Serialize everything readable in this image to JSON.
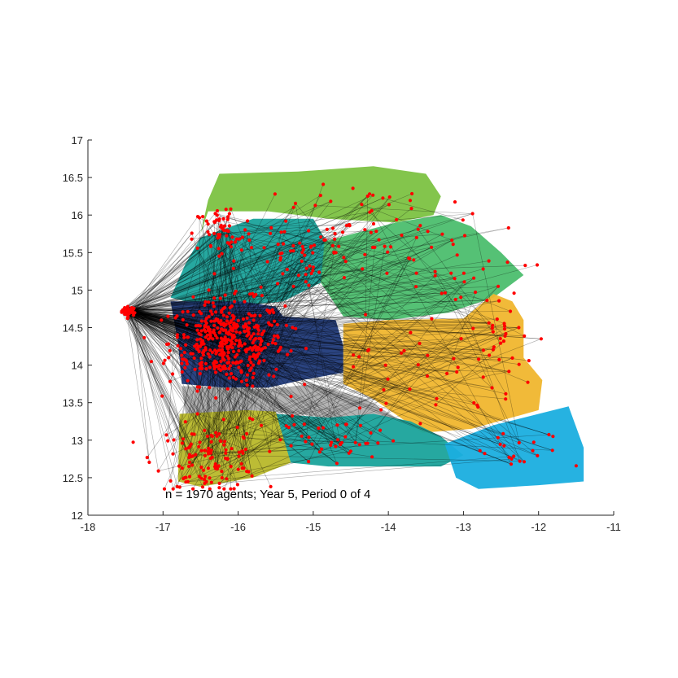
{
  "chart_data": {
    "type": "scatter",
    "title": "",
    "xlabel": "",
    "ylabel": "",
    "xlim": [
      -18,
      -11
    ],
    "ylim": [
      12,
      17
    ],
    "xticks": [
      -18,
      -17,
      -16,
      -15,
      -14,
      -13,
      -12,
      -11
    ],
    "yticks": [
      12,
      12.5,
      13,
      13.5,
      14,
      14.5,
      15,
      15.5,
      16,
      16.5,
      17
    ],
    "xtick_labels": [
      "-18",
      "-17",
      "-16",
      "-15",
      "-14",
      "-13",
      "-12",
      "-11"
    ],
    "ytick_labels": [
      "12",
      "12.5",
      "13",
      "13.5",
      "14",
      "14.5",
      "15",
      "15.5",
      "16",
      "16.5",
      "17"
    ],
    "grid": false,
    "legend": "none",
    "annotation": "n = 1970 agents; Year 5, Period 0 of 4",
    "agent_count": 1970,
    "colors": {
      "agent_marker": "#ff0000",
      "network_edge": "#000000",
      "region_north": "#7cc242",
      "region_teal": "#1aa39b",
      "region_green_east": "#4cbe6e",
      "region_navy": "#203a7a",
      "region_yellow": "#f0b62e",
      "region_gray": "#b0b0b0",
      "region_olive": "#b8b82a",
      "region_cyan": "#1aaedf"
    },
    "regions": [
      {
        "name": "north",
        "color": "#7cc242",
        "polygon": [
          [
            -16.25,
            16.55
          ],
          [
            -15.2,
            16.58
          ],
          [
            -14.2,
            16.65
          ],
          [
            -13.5,
            16.55
          ],
          [
            -13.3,
            16.25
          ],
          [
            -13.4,
            16.0
          ],
          [
            -13.9,
            15.9
          ],
          [
            -14.8,
            15.95
          ],
          [
            -15.6,
            16.05
          ],
          [
            -16.4,
            16.05
          ],
          [
            -16.5,
            15.75
          ],
          [
            -16.4,
            16.2
          ]
        ]
      },
      {
        "name": "teal-north",
        "color": "#1aa39b",
        "polygon": [
          [
            -16.5,
            15.7
          ],
          [
            -15.8,
            15.95
          ],
          [
            -15.0,
            15.95
          ],
          [
            -14.8,
            15.6
          ],
          [
            -14.9,
            15.1
          ],
          [
            -15.4,
            14.85
          ],
          [
            -16.3,
            14.75
          ],
          [
            -16.9,
            14.9
          ],
          [
            -16.7,
            15.35
          ]
        ]
      },
      {
        "name": "green-east",
        "color": "#4cbe6e",
        "polygon": [
          [
            -14.85,
            15.65
          ],
          [
            -13.9,
            15.9
          ],
          [
            -13.3,
            16.0
          ],
          [
            -12.9,
            15.85
          ],
          [
            -12.5,
            15.5
          ],
          [
            -12.2,
            15.2
          ],
          [
            -12.6,
            14.9
          ],
          [
            -13.2,
            14.7
          ],
          [
            -14.0,
            14.6
          ],
          [
            -14.6,
            14.65
          ],
          [
            -14.9,
            15.1
          ]
        ]
      },
      {
        "name": "navy",
        "color": "#203a7a",
        "polygon": [
          [
            -16.9,
            14.85
          ],
          [
            -15.95,
            14.85
          ],
          [
            -15.5,
            14.78
          ],
          [
            -15.4,
            14.65
          ],
          [
            -14.7,
            14.6
          ],
          [
            -14.6,
            14.25
          ],
          [
            -14.6,
            13.9
          ],
          [
            -15.15,
            13.8
          ],
          [
            -15.6,
            13.7
          ],
          [
            -16.2,
            13.7
          ],
          [
            -16.75,
            13.75
          ],
          [
            -16.8,
            14.3
          ]
        ]
      },
      {
        "name": "yellow",
        "color": "#f0b62e",
        "polygon": [
          [
            -14.6,
            14.55
          ],
          [
            -14.0,
            14.6
          ],
          [
            -13.0,
            14.62
          ],
          [
            -12.6,
            14.95
          ],
          [
            -12.35,
            14.85
          ],
          [
            -12.2,
            14.6
          ],
          [
            -12.2,
            14.1
          ],
          [
            -11.95,
            13.8
          ],
          [
            -12.0,
            13.4
          ],
          [
            -12.9,
            13.15
          ],
          [
            -13.55,
            13.1
          ],
          [
            -14.2,
            13.55
          ],
          [
            -14.6,
            13.75
          ]
        ]
      },
      {
        "name": "gray",
        "color": "#b0b0b0",
        "polygon": [
          [
            -16.75,
            13.72
          ],
          [
            -15.6,
            13.68
          ],
          [
            -15.0,
            13.75
          ],
          [
            -14.3,
            13.55
          ],
          [
            -13.9,
            13.3
          ],
          [
            -14.5,
            13.25
          ],
          [
            -15.2,
            13.35
          ],
          [
            -15.9,
            13.4
          ],
          [
            -16.7,
            13.35
          ]
        ]
      },
      {
        "name": "teal-south",
        "color": "#1aa39b",
        "polygon": [
          [
            -15.5,
            13.35
          ],
          [
            -14.8,
            13.3
          ],
          [
            -14.2,
            13.35
          ],
          [
            -13.7,
            13.25
          ],
          [
            -13.3,
            13.05
          ],
          [
            -13.0,
            12.8
          ],
          [
            -13.3,
            12.65
          ],
          [
            -14.0,
            12.65
          ],
          [
            -14.8,
            12.65
          ],
          [
            -15.3,
            12.7
          ]
        ]
      },
      {
        "name": "olive",
        "color": "#b8b82a",
        "polygon": [
          [
            -16.78,
            13.35
          ],
          [
            -15.9,
            13.4
          ],
          [
            -15.5,
            13.38
          ],
          [
            -15.3,
            12.7
          ],
          [
            -15.8,
            12.5
          ],
          [
            -16.5,
            12.38
          ],
          [
            -16.8,
            12.45
          ]
        ]
      },
      {
        "name": "cyan",
        "color": "#1aaedf",
        "polygon": [
          [
            -13.25,
            12.95
          ],
          [
            -12.6,
            13.2
          ],
          [
            -12.0,
            13.35
          ],
          [
            -11.6,
            13.45
          ],
          [
            -11.4,
            12.9
          ],
          [
            -11.4,
            12.45
          ],
          [
            -12.0,
            12.4
          ],
          [
            -12.8,
            12.35
          ],
          [
            -13.1,
            12.5
          ]
        ]
      }
    ],
    "series": [
      {
        "type": "scatter",
        "marker": "red dots",
        "cluster_note_centers": [
          [
            -17.45,
            14.72
          ],
          [
            -16.2,
            14.3
          ],
          [
            -16.5,
            12.6
          ],
          [
            -16.3,
            15.9
          ]
        ]
      }
    ]
  }
}
